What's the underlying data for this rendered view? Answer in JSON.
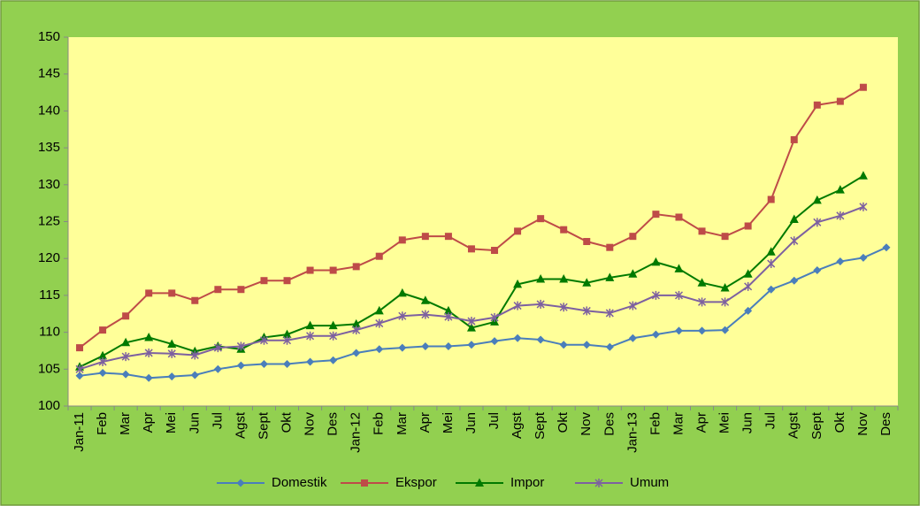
{
  "chart_data": {
    "type": "line",
    "categories": [
      "Jan-11",
      "Feb",
      "Mar",
      "Apr",
      "Mei",
      "Jun",
      "Jul",
      "Agst",
      "Sept",
      "Okt",
      "Nov",
      "Des",
      "Jan-12",
      "Feb",
      "Mar",
      "Apr",
      "Mei",
      "Jun",
      "Jul",
      "Agst",
      "Sept",
      "Okt",
      "Nov",
      "Des",
      "Jan-13",
      "Feb",
      "Mar",
      "Apr",
      "Mei",
      "Jun",
      "Jul",
      "Agst",
      "Sept",
      "Okt",
      "Nov",
      "Des"
    ],
    "series": [
      {
        "name": "Domestik",
        "color": "#4a7ebb",
        "marker": "diamond",
        "values": [
          104.1,
          104.5,
          104.3,
          103.8,
          104.0,
          104.2,
          105.0,
          105.5,
          105.7,
          105.7,
          106.0,
          106.2,
          107.2,
          107.7,
          107.9,
          108.1,
          108.1,
          108.3,
          108.8,
          109.2,
          109.0,
          108.3,
          108.3,
          108.0,
          109.2,
          109.7,
          110.2,
          110.2,
          110.3,
          112.9,
          115.8,
          117.0,
          118.4,
          119.6,
          120.1,
          121.5
        ]
      },
      {
        "name": "Ekspor",
        "color": "#be4b48",
        "marker": "square",
        "values": [
          107.9,
          110.3,
          112.2,
          115.3,
          115.3,
          114.3,
          115.8,
          115.8,
          117.0,
          117.0,
          118.4,
          118.4,
          118.9,
          120.3,
          122.5,
          123.0,
          123.0,
          121.3,
          121.1,
          123.7,
          125.4,
          123.9,
          122.3,
          121.5,
          123.0,
          126.0,
          125.6,
          123.7,
          123.0,
          124.4,
          128.0,
          136.1,
          140.8,
          141.3,
          143.2,
          null
        ]
      },
      {
        "name": "Impor",
        "color": "#007a00",
        "marker": "triangle",
        "values": [
          105.3,
          106.8,
          108.6,
          109.3,
          108.4,
          107.4,
          108.1,
          107.7,
          109.3,
          109.7,
          110.9,
          110.9,
          111.1,
          112.9,
          115.3,
          114.3,
          112.9,
          110.6,
          111.4,
          116.5,
          117.2,
          117.2,
          116.7,
          117.4,
          117.9,
          119.5,
          118.6,
          116.7,
          116.0,
          117.9,
          120.9,
          125.3,
          127.9,
          129.3,
          131.2,
          null
        ]
      },
      {
        "name": "Umum",
        "color": "#7d60a0",
        "marker": "star",
        "values": [
          105.0,
          106.0,
          106.7,
          107.2,
          107.1,
          106.9,
          107.9,
          108.1,
          108.9,
          108.9,
          109.5,
          109.5,
          110.3,
          111.2,
          112.2,
          112.4,
          112.1,
          111.5,
          112.0,
          113.6,
          113.8,
          113.4,
          112.9,
          112.6,
          113.6,
          115.0,
          115.0,
          114.1,
          114.1,
          116.2,
          119.3,
          122.4,
          124.9,
          125.8,
          127.0,
          null
        ]
      }
    ],
    "ylim": [
      100,
      150
    ],
    "yticks": [
      100,
      105,
      110,
      115,
      120,
      125,
      130,
      135,
      140,
      145,
      150
    ],
    "grid": false,
    "legend": "bottom",
    "background": "#92d050",
    "plot_background": "#ffff99"
  }
}
